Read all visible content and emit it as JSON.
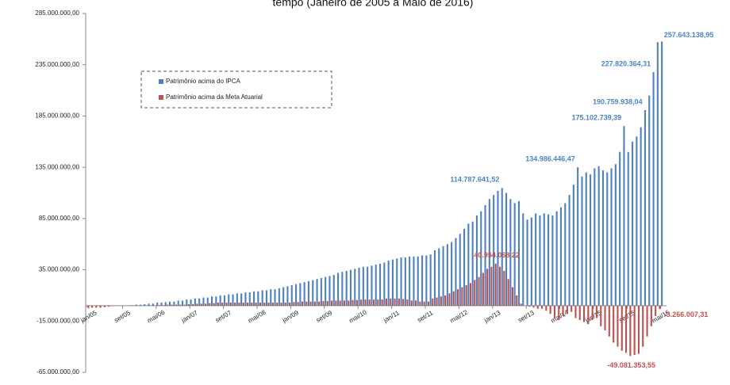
{
  "chart_data": {
    "type": "bar",
    "title": "tempo (Janeiro de 2005 a Maio de 2016)",
    "categories": [
      "jan/05",
      null,
      null,
      null,
      null,
      null,
      null,
      null,
      "set/05",
      null,
      null,
      null,
      null,
      null,
      null,
      null,
      "mai/06",
      null,
      null,
      null,
      null,
      null,
      null,
      null,
      "jan/07",
      null,
      null,
      null,
      null,
      null,
      null,
      null,
      "set/07",
      null,
      null,
      null,
      null,
      null,
      null,
      null,
      "mai/08",
      null,
      null,
      null,
      null,
      null,
      null,
      null,
      "jan/09",
      null,
      null,
      null,
      null,
      null,
      null,
      null,
      "set/09",
      null,
      null,
      null,
      null,
      null,
      null,
      null,
      "mai/10",
      null,
      null,
      null,
      null,
      null,
      null,
      null,
      "jan/11",
      null,
      null,
      null,
      null,
      null,
      null,
      null,
      "set/11",
      null,
      null,
      null,
      null,
      null,
      null,
      null,
      "mai/12",
      null,
      null,
      null,
      null,
      null,
      null,
      null,
      "jan/13",
      null,
      null,
      null,
      null,
      null,
      null,
      null,
      "set/13",
      null,
      null,
      null,
      null,
      null,
      null,
      null,
      "mai/14",
      null,
      null,
      null,
      null,
      null,
      null,
      null,
      "jan/15",
      null,
      null,
      null,
      null,
      null,
      null,
      null,
      "set/15",
      null,
      null,
      null,
      null,
      null,
      null,
      null,
      "mai/16"
    ],
    "series": [
      {
        "name": "Patrimônio acima do IPCA",
        "color": "#4f81bd",
        "label_color": "#4a86c8",
        "values": [
          0,
          0,
          0,
          0,
          0,
          0,
          0,
          0,
          0,
          0,
          500000,
          1000000,
          1000000,
          1500000,
          2000000,
          2000000,
          3000000,
          3000000,
          3500000,
          4000000,
          4000000,
          5000000,
          5000000,
          6000000,
          6000000,
          7000000,
          7000000,
          8000000,
          8000000,
          9000000,
          9000000,
          10000000,
          10000000,
          11000000,
          11000000,
          12000000,
          12000000,
          13000000,
          13000000,
          14000000,
          14000000,
          15000000,
          15000000,
          16000000,
          16000000,
          17000000,
          18000000,
          19000000,
          20000000,
          21000000,
          22000000,
          23000000,
          24000000,
          25000000,
          26000000,
          27000000,
          28000000,
          29000000,
          30000000,
          32000000,
          33000000,
          34000000,
          35000000,
          36000000,
          37000000,
          38000000,
          38000000,
          39000000,
          40000000,
          41000000,
          42000000,
          44000000,
          45000000,
          46000000,
          47000000,
          47000000,
          48000000,
          48000000,
          48000000,
          49000000,
          49000000,
          50000000,
          54000000,
          56000000,
          58000000,
          60000000,
          62000000,
          66000000,
          70000000,
          75000000,
          80000000,
          82000000,
          88000000,
          92000000,
          98000000,
          104000000,
          108000000,
          112000000,
          114787641.52,
          110000000,
          104000000,
          100000000,
          102000000,
          90000000,
          84000000,
          86000000,
          90000000,
          88000000,
          90000000,
          89000000,
          88000000,
          92000000,
          96000000,
          100000000,
          108000000,
          118000000,
          134986446.47,
          126000000,
          130000000,
          128000000,
          134000000,
          136000000,
          132000000,
          130000000,
          134000000,
          138000000,
          150000000,
          175102739.39,
          150000000,
          160000000,
          165000000,
          174000000,
          190759938.04,
          205000000,
          227820364.31,
          257000000,
          257643138.95
        ],
        "value_labels": [
          null,
          null,
          null,
          null,
          null,
          null,
          null,
          null,
          null,
          null,
          null,
          null,
          null,
          null,
          null,
          null,
          null,
          null,
          null,
          null,
          null,
          null,
          null,
          null,
          null,
          null,
          null,
          null,
          null,
          null,
          null,
          null,
          null,
          null,
          null,
          null,
          null,
          null,
          null,
          null,
          null,
          null,
          null,
          null,
          null,
          null,
          null,
          null,
          null,
          null,
          null,
          null,
          null,
          null,
          null,
          null,
          null,
          null,
          null,
          null,
          null,
          null,
          null,
          null,
          null,
          null,
          null,
          null,
          null,
          null,
          null,
          null,
          null,
          null,
          null,
          null,
          null,
          null,
          null,
          null,
          null,
          null,
          null,
          null,
          null,
          null,
          null,
          null,
          null,
          null,
          null,
          null,
          null,
          null,
          null,
          null,
          null,
          null,
          "114.787.641,52",
          null,
          null,
          null,
          null,
          null,
          null,
          null,
          null,
          null,
          null,
          null,
          null,
          null,
          null,
          null,
          null,
          null,
          "134.986.446,47",
          null,
          null,
          null,
          null,
          null,
          null,
          null,
          null,
          null,
          null,
          "175.102.739,39",
          null,
          null,
          null,
          null,
          "190.759.938,04",
          null,
          "227.820.364,31",
          null,
          "257.643.138,95"
        ]
      },
      {
        "name": "Patrimônio acima da Meta Atuarial",
        "color": "#c0504d",
        "label_color": "#c0504d",
        "values": [
          -2000000,
          -2000000,
          -2000000,
          -2000000,
          -1500000,
          -1000000,
          -500000,
          0,
          0,
          0,
          0,
          0,
          0,
          0,
          0,
          0,
          0,
          500000,
          500000,
          1000000,
          1000000,
          1000000,
          1000000,
          1000000,
          1500000,
          1500000,
          2000000,
          2000000,
          2000000,
          2500000,
          2500000,
          3000000,
          3000000,
          3000000,
          3000000,
          3000000,
          3000000,
          3000000,
          3000000,
          3000000,
          3000000,
          3000000,
          3000000,
          3000000,
          3000000,
          3000000,
          3000000,
          3000000,
          3000000,
          3500000,
          3500000,
          4000000,
          4000000,
          4000000,
          4000000,
          4000000,
          4500000,
          4500000,
          5000000,
          5000000,
          5000000,
          5000000,
          5000000,
          5500000,
          5500000,
          6000000,
          6000000,
          6000000,
          6000000,
          6000000,
          6000000,
          7000000,
          7000000,
          7000000,
          7000000,
          6500000,
          6000000,
          5000000,
          5000000,
          4000000,
          4000000,
          4000000,
          7000000,
          8000000,
          9000000,
          10000000,
          12000000,
          14000000,
          16000000,
          18000000,
          20000000,
          22000000,
          25000000,
          28000000,
          32000000,
          36000000,
          38000000,
          40954068.22,
          38000000,
          34000000,
          26000000,
          18000000,
          10000000,
          2000000,
          0,
          -1000000,
          -2000000,
          -3000000,
          -3000000,
          -5000000,
          -8000000,
          -12000000,
          -14000000,
          -10000000,
          -8000000,
          -6000000,
          -12000000,
          -14000000,
          -16000000,
          -18000000,
          -14000000,
          -12000000,
          -20000000,
          -24000000,
          -30000000,
          -36000000,
          -40000000,
          -44000000,
          -46000000,
          -49081353.55,
          -48000000,
          -47000000,
          -40000000,
          -30000000,
          -20000000,
          -10000000,
          -3266007.31
        ],
        "value_labels": [
          null,
          null,
          null,
          null,
          null,
          null,
          null,
          null,
          null,
          null,
          null,
          null,
          null,
          null,
          null,
          null,
          null,
          null,
          null,
          null,
          null,
          null,
          null,
          null,
          null,
          null,
          null,
          null,
          null,
          null,
          null,
          null,
          null,
          null,
          null,
          null,
          null,
          null,
          null,
          null,
          null,
          null,
          null,
          null,
          null,
          null,
          null,
          null,
          null,
          null,
          null,
          null,
          null,
          null,
          null,
          null,
          null,
          null,
          null,
          null,
          null,
          null,
          null,
          null,
          null,
          null,
          null,
          null,
          null,
          null,
          null,
          null,
          null,
          null,
          null,
          null,
          null,
          null,
          null,
          null,
          null,
          null,
          null,
          null,
          null,
          null,
          null,
          null,
          null,
          null,
          null,
          null,
          null,
          null,
          null,
          null,
          null,
          "40.954.068,22",
          null,
          null,
          null,
          null,
          null,
          null,
          null,
          null,
          null,
          null,
          null,
          null,
          null,
          null,
          null,
          null,
          null,
          null,
          null,
          null,
          null,
          null,
          null,
          null,
          null,
          null,
          null,
          null,
          null,
          null,
          null,
          "-49.081.353,55",
          null,
          null,
          null,
          null,
          null,
          null,
          "-3.266.007,31"
        ]
      }
    ],
    "ylim": [
      -65000000,
      285000000
    ],
    "yticks": [
      {
        "value": -65000000,
        "label": "-65.000.000,00"
      },
      {
        "value": -15000000,
        "label": "-15.000.000,00"
      },
      {
        "value": 35000000,
        "label": "35.000.000,00"
      },
      {
        "value": 85000000,
        "label": "85.000.000,00"
      },
      {
        "value": 135000000,
        "label": "135.000.000,00"
      },
      {
        "value": 185000000,
        "label": "185.000.000,00"
      },
      {
        "value": 235000000,
        "label": "235.000.000,00"
      },
      {
        "value": 285000000,
        "label": "285.000.000,00"
      }
    ],
    "grid": false,
    "legend": "upper left"
  }
}
